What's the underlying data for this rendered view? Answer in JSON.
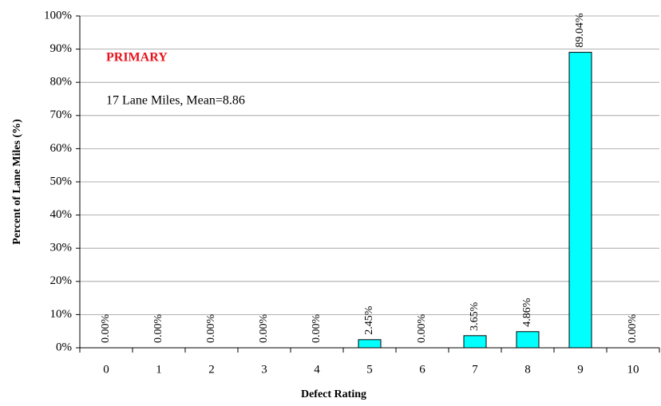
{
  "chart_data": {
    "type": "bar",
    "xlabel": "Defect Rating",
    "ylabel": "Percent of Lane Miles (%)",
    "annotations": [
      {
        "text": "PRIMARY",
        "color": "#e8141c"
      },
      {
        "text": "17 Lane Miles, Mean=8.86",
        "color": "#000000"
      }
    ],
    "categories": [
      "0",
      "1",
      "2",
      "3",
      "4",
      "5",
      "6",
      "7",
      "8",
      "9",
      "10"
    ],
    "values": [
      0,
      0,
      0,
      0,
      0,
      2.45,
      0,
      3.65,
      4.86,
      89.04,
      0
    ],
    "value_labels": [
      "0.00%",
      "0.00%",
      "0.00%",
      "0.00%",
      "0.00%",
      "2.45%",
      "0.00%",
      "3.65%",
      "4.86%",
      "89.04%",
      "0.00%"
    ],
    "color": "#00ffff",
    "ylim": [
      0,
      100
    ],
    "yticks": [
      {
        "value": 0,
        "label": "0%"
      },
      {
        "value": 10,
        "label": "10%"
      },
      {
        "value": 20,
        "label": "20%"
      },
      {
        "value": 30,
        "label": "30%"
      },
      {
        "value": 40,
        "label": "40%"
      },
      {
        "value": 50,
        "label": "50%"
      },
      {
        "value": 60,
        "label": "60%"
      },
      {
        "value": 70,
        "label": "70%"
      },
      {
        "value": 80,
        "label": "80%"
      },
      {
        "value": 90,
        "label": "90%"
      },
      {
        "value": 100,
        "label": "100%"
      }
    ],
    "grid": true
  }
}
